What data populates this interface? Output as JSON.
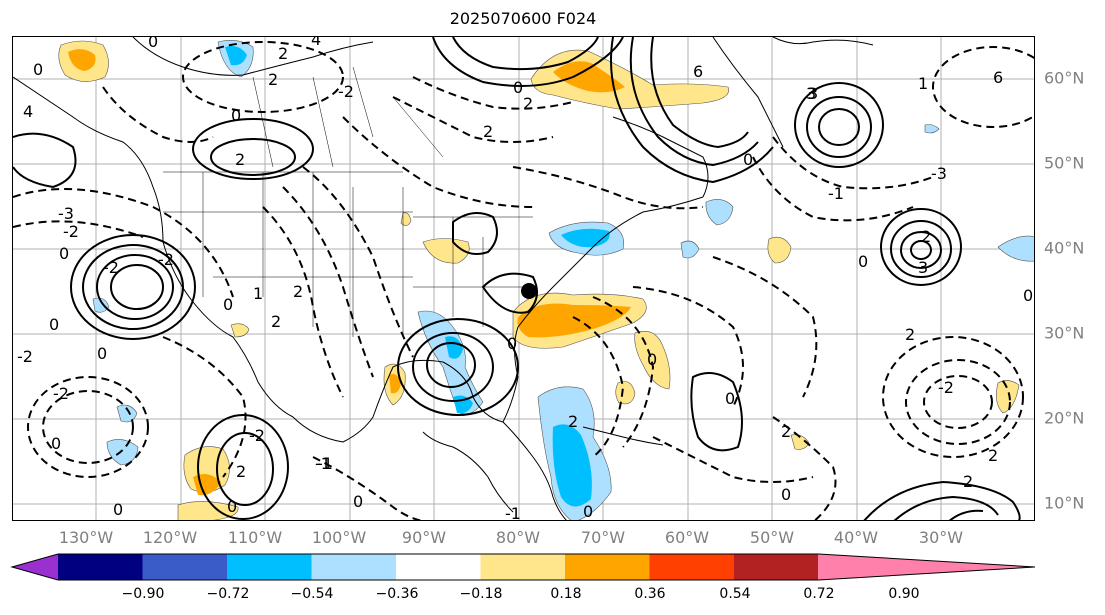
{
  "title": "2025070600 F024",
  "lon_labels": [
    "130°W",
    "120°W",
    "110°W",
    "100°W",
    "90°W",
    "80°W",
    "70°W",
    "60°W",
    "50°W",
    "40°W",
    "30°W"
  ],
  "lat_labels": [
    "60°N",
    "50°N",
    "40°N",
    "30°N",
    "20°N",
    "10°N"
  ],
  "colorbar": {
    "ticks": [
      "−0.90",
      "−0.72",
      "−0.54",
      "−0.36",
      "−0.18",
      "0.18",
      "0.36",
      "0.54",
      "0.72",
      "0.90"
    ],
    "colors": [
      "#9b30d0",
      "#000080",
      "#3a5cc8",
      "#00bfff",
      "#ade0ff",
      "#ffffff",
      "#ffe68a",
      "#ffa500",
      "#ff4000",
      "#b22222",
      "#ff80aa"
    ]
  },
  "contour_labels": [
    "0",
    "4",
    "2",
    "0",
    "3",
    "6",
    "6",
    "2",
    "-2",
    "2",
    "0",
    "2",
    "4",
    "-3",
    "-2",
    "0",
    "2",
    "-2",
    "0",
    "3",
    "-1",
    "-3",
    "-2",
    "2",
    "0",
    "2",
    "1",
    "0",
    "-2",
    "0",
    "0",
    "2",
    "2",
    "-2",
    "-1",
    "0",
    "-2",
    "0",
    "0",
    "3",
    "2",
    "-2",
    "0",
    "-1",
    "0",
    "0",
    "0",
    "2",
    "0",
    "0",
    "2",
    "-1",
    "2",
    "1",
    "0",
    "0",
    "2"
  ],
  "marker": {
    "name": "black-dot"
  }
}
